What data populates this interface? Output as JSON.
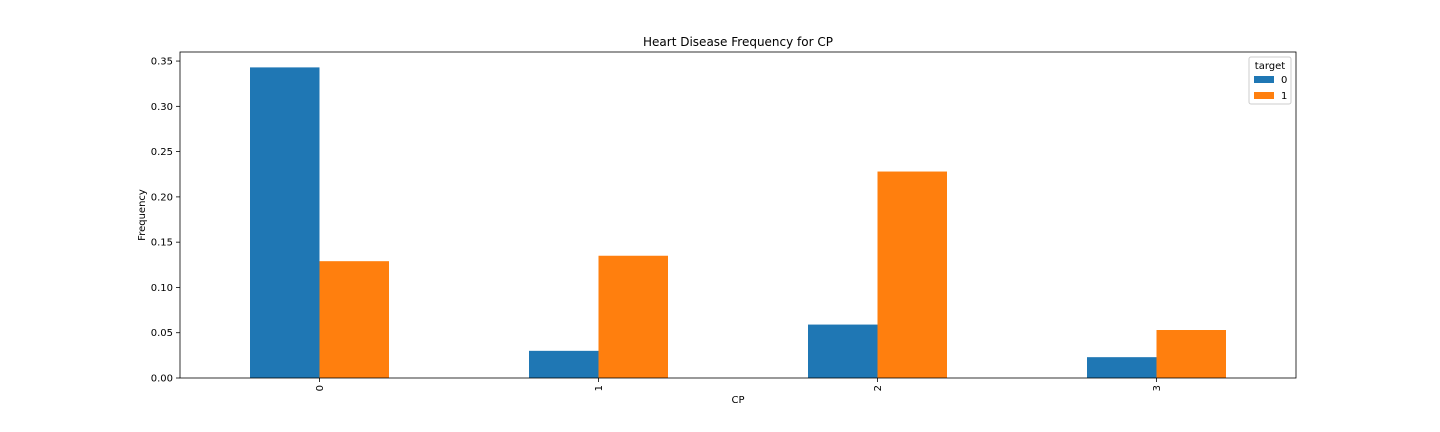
{
  "chart_data": {
    "type": "bar",
    "title": "Heart Disease Frequency for CP",
    "xlabel": "CP",
    "ylabel": "Frequency",
    "categories": [
      "0",
      "1",
      "2",
      "3"
    ],
    "series": [
      {
        "name": "0",
        "values": [
          0.343,
          0.03,
          0.059,
          0.023
        ],
        "color": "#1f77b4"
      },
      {
        "name": "1",
        "values": [
          0.129,
          0.135,
          0.228,
          0.053
        ],
        "color": "#ff7f0e"
      }
    ],
    "yticks": [
      "0.00",
      "0.05",
      "0.10",
      "0.15",
      "0.20",
      "0.25",
      "0.30",
      "0.35"
    ],
    "ylim": [
      0,
      0.36
    ],
    "legend": {
      "title": "target",
      "position": "top-right"
    },
    "grid": false
  }
}
